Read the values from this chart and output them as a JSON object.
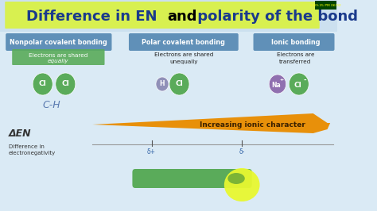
{
  "title_text": "Difference in EN ",
  "title_and": "and",
  "title_rest": " polarity of the bond",
  "title_highlight_color": "#d8f050",
  "title_fontsize": 13,
  "bg_color": "#daeaf5",
  "title_bg_color": "#cce0ef",
  "section1_title": "Nonpolar covalent bonding",
  "section1_sub1": "Electrons are shared",
  "section1_sub2": "equally",
  "section1_sub_color": "#5aab5a",
  "section2_title": "Polar covalent bonding",
  "section2_sub": "Electrons are shared\nunequally",
  "section3_title": "Ionic bonding",
  "section3_sub": "Electrons are\ntransferred",
  "arrow_label": "Increasing ionic character",
  "arrow_color": "#e8900a",
  "arrow_label_color": "#3a2000",
  "delta_en_label": "ΔEN",
  "diff_label": "Difference in\nelectronegativity",
  "ch_label": "C-H",
  "nonpolar_color": "#5aab5a",
  "polar_small_color": "#9090b8",
  "polar_large_color": "#5aab5a",
  "ionic_na_color": "#9070b0",
  "ionic_cl_color": "#5aab5a",
  "header_blue": "#6090b8",
  "bottom_bar_green": "#5aab5a",
  "bottom_ellipse_yellow": "#e8f830",
  "ts_bg": "#004400",
  "ts_text": "#ffff00",
  "white": "#ffffff",
  "dark_text": "#222222",
  "blue_text": "#1a3a8c",
  "gray_line": "#999999"
}
